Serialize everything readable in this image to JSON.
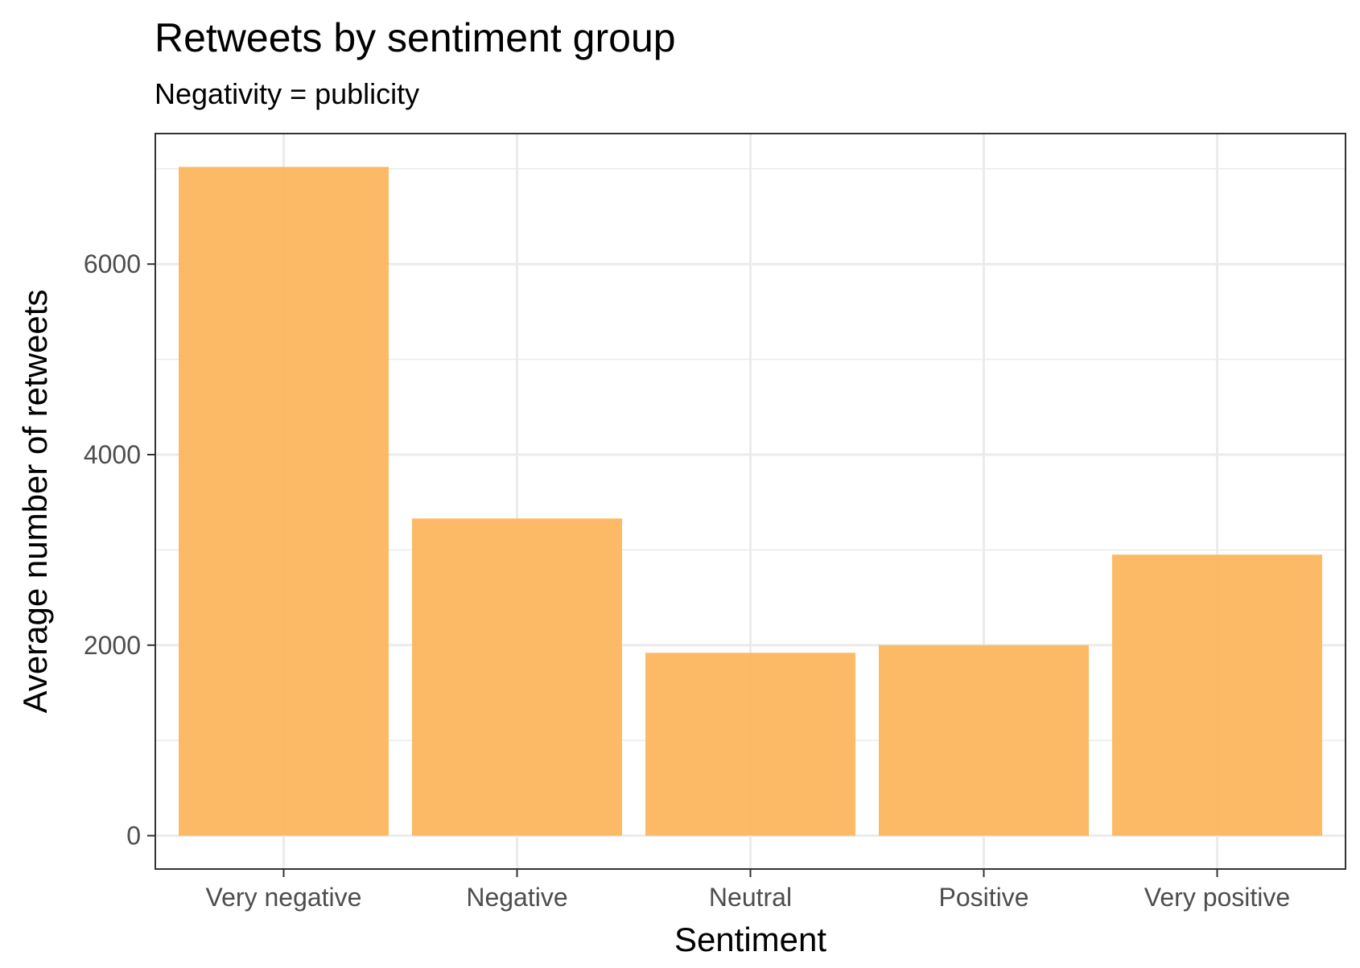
{
  "chart_data": {
    "type": "bar",
    "title": "Retweets by sentiment group",
    "subtitle": "Negativity = publicity",
    "xlabel": "Sentiment",
    "ylabel": "Average number of retweets",
    "categories": [
      "Very negative",
      "Negative",
      "Neutral",
      "Positive",
      "Very positive"
    ],
    "values": [
      7020,
      3330,
      1920,
      2000,
      2950
    ],
    "ylim": [
      -350,
      7370
    ],
    "yticks": [
      0,
      2000,
      4000,
      6000
    ],
    "ytick_labels": [
      "0",
      "2000",
      "4000",
      "6000"
    ],
    "grid": true,
    "bar_color": "#fcb65f"
  }
}
